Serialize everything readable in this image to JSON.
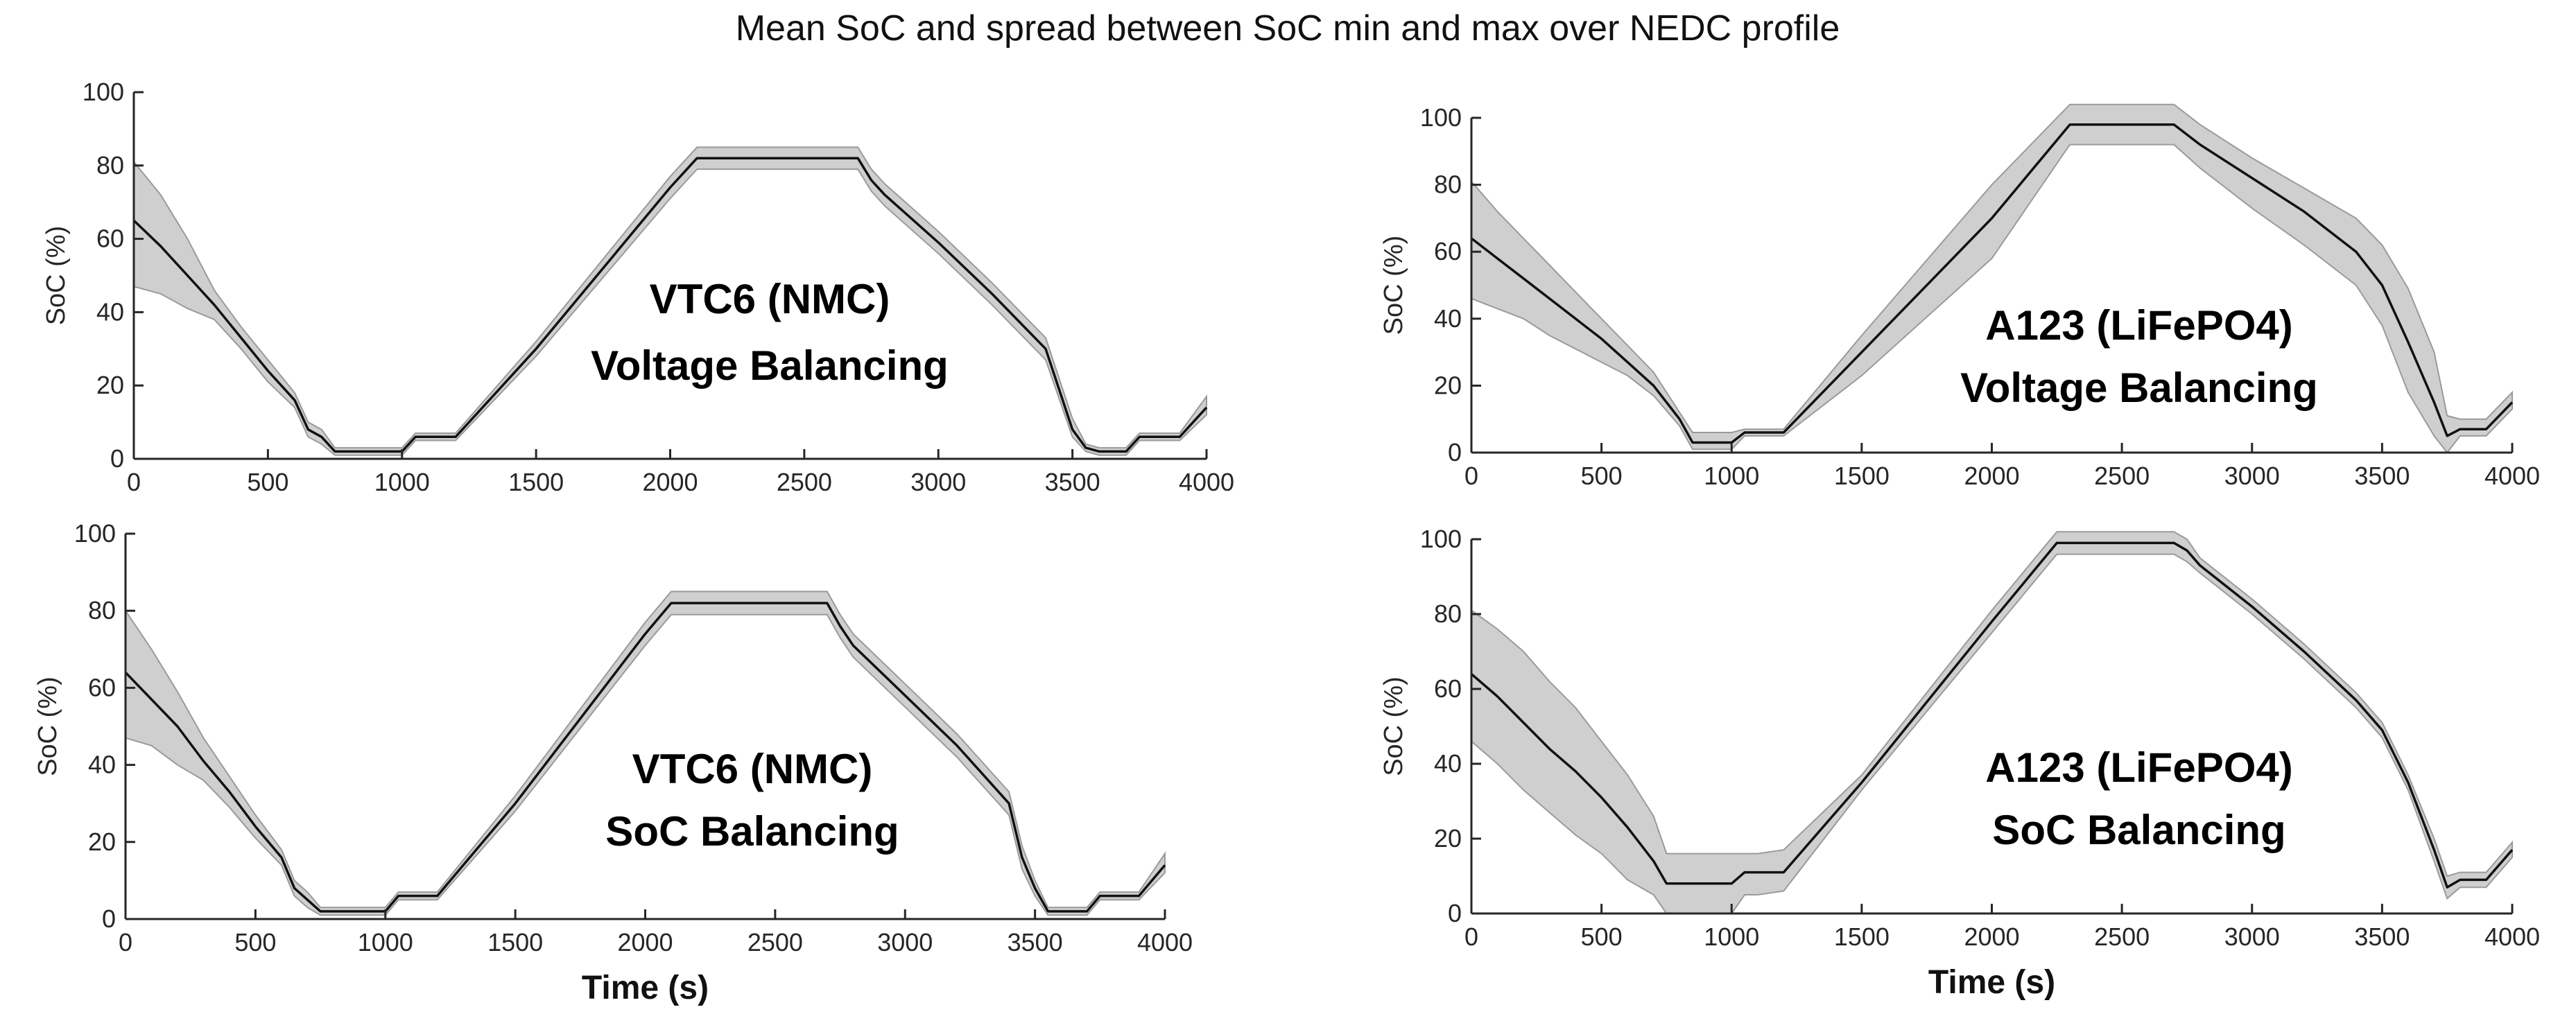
{
  "figure": {
    "title": "Mean SoC and spread between SoC min and max over NEDC profile"
  },
  "chart_data": [
    {
      "type": "area",
      "panel": "top-left",
      "annotation": [
        "VTC6 (NMC)",
        "Voltage Balancing"
      ],
      "xlabel": "",
      "ylabel": "SoC (%)",
      "xlim": [
        0,
        4000
      ],
      "ylim": [
        0,
        100
      ],
      "xticks": [
        0,
        500,
        1000,
        1500,
        2000,
        2500,
        3000,
        3500,
        4000
      ],
      "yticks": [
        0,
        20,
        40,
        60,
        80,
        100
      ],
      "series": [
        {
          "name": "mean",
          "x": [
            0,
            100,
            200,
            300,
            400,
            500,
            600,
            650,
            700,
            750,
            800,
            900,
            1000,
            1050,
            1100,
            1200,
            1500,
            2000,
            2100,
            2700,
            2750,
            2800,
            3000,
            3200,
            3400,
            3500,
            3550,
            3600,
            3700,
            3750,
            3800,
            3900,
            4000
          ],
          "values": [
            65,
            58,
            50,
            42,
            33,
            24,
            16,
            8,
            6,
            2,
            2,
            2,
            2,
            6,
            6,
            6,
            30,
            74,
            82,
            82,
            76,
            72,
            59,
            45,
            30,
            8,
            3,
            2,
            2,
            6,
            6,
            6,
            14
          ]
        },
        {
          "name": "max",
          "x": [
            0,
            100,
            200,
            300,
            400,
            500,
            600,
            650,
            700,
            750,
            800,
            900,
            1000,
            1050,
            1100,
            1200,
            1500,
            2000,
            2100,
            2700,
            2750,
            2800,
            3000,
            3200,
            3400,
            3500,
            3550,
            3600,
            3700,
            3750,
            3800,
            3900,
            4000
          ],
          "values": [
            81,
            72,
            60,
            46,
            36,
            27,
            18,
            10,
            8,
            3,
            3,
            3,
            3,
            7,
            7,
            7,
            32,
            77,
            85,
            85,
            79,
            75,
            62,
            48,
            33,
            11,
            4,
            3,
            3,
            7,
            7,
            7,
            17
          ]
        },
        {
          "name": "min",
          "x": [
            0,
            100,
            200,
            300,
            400,
            500,
            600,
            650,
            700,
            750,
            800,
            900,
            1000,
            1050,
            1100,
            1200,
            1500,
            2000,
            2100,
            2700,
            2750,
            2800,
            3000,
            3200,
            3400,
            3500,
            3550,
            3600,
            3700,
            3750,
            3800,
            3900,
            4000
          ],
          "values": [
            47,
            45,
            41,
            38,
            30,
            21,
            14,
            6,
            4,
            1,
            1,
            1,
            1,
            5,
            5,
            5,
            28,
            71,
            79,
            79,
            73,
            69,
            56,
            42,
            27,
            6,
            2,
            1,
            1,
            5,
            5,
            5,
            12
          ]
        }
      ]
    },
    {
      "type": "area",
      "panel": "top-right",
      "annotation": [
        "A123 (LiFePO4)",
        "Voltage Balancing"
      ],
      "xlabel": "",
      "ylabel": "SoC (%)",
      "xlim": [
        0,
        4000
      ],
      "ylim": [
        0,
        100
      ],
      "xticks": [
        0,
        500,
        1000,
        1500,
        2000,
        2500,
        3000,
        3500,
        4000
      ],
      "yticks": [
        0,
        20,
        40,
        60,
        80,
        100
      ],
      "series": [
        {
          "name": "mean",
          "x": [
            0,
            100,
            200,
            300,
            400,
            500,
            600,
            700,
            800,
            850,
            900,
            1000,
            1050,
            1100,
            1200,
            1500,
            2000,
            2300,
            2700,
            2800,
            3000,
            3200,
            3400,
            3500,
            3600,
            3700,
            3750,
            3800,
            3900,
            4000
          ],
          "values": [
            64,
            58,
            52,
            46,
            40,
            34,
            27,
            20,
            10,
            3,
            3,
            3,
            6,
            6,
            6,
            30,
            70,
            98,
            98,
            92,
            82,
            72,
            60,
            50,
            33,
            15,
            5,
            7,
            7,
            15
          ]
        },
        {
          "name": "max",
          "x": [
            0,
            100,
            200,
            300,
            400,
            500,
            600,
            700,
            800,
            850,
            900,
            1000,
            1050,
            1100,
            1200,
            1500,
            2000,
            2300,
            2700,
            2800,
            3000,
            3200,
            3400,
            3500,
            3600,
            3700,
            3750,
            3800,
            3900,
            4000
          ],
          "values": [
            81,
            72,
            64,
            56,
            48,
            40,
            32,
            24,
            12,
            6,
            6,
            6,
            7,
            7,
            7,
            35,
            80,
            104,
            104,
            98,
            88,
            79,
            70,
            62,
            49,
            30,
            11,
            10,
            10,
            18
          ]
        },
        {
          "name": "min",
          "x": [
            0,
            100,
            200,
            300,
            400,
            500,
            600,
            700,
            800,
            850,
            900,
            1000,
            1050,
            1100,
            1200,
            1500,
            2000,
            2300,
            2700,
            2800,
            3000,
            3200,
            3400,
            3500,
            3600,
            3700,
            3750,
            3800,
            3900,
            4000
          ],
          "values": [
            46,
            43,
            40,
            35,
            31,
            27,
            23,
            17,
            8,
            1,
            1,
            1,
            5,
            5,
            5,
            23,
            58,
            92,
            92,
            85,
            73,
            62,
            50,
            38,
            18,
            5,
            0,
            5,
            5,
            13
          ]
        }
      ]
    },
    {
      "type": "area",
      "panel": "bottom-left",
      "annotation": [
        "VTC6 (NMC)",
        "SoC Balancing"
      ],
      "xlabel": "Time (s)",
      "ylabel": "SoC (%)",
      "xlim": [
        0,
        4000
      ],
      "ylim": [
        0,
        100
      ],
      "xticks": [
        0,
        500,
        1000,
        1500,
        2000,
        2500,
        3000,
        3500,
        4000
      ],
      "yticks": [
        0,
        20,
        40,
        60,
        80,
        100
      ],
      "series": [
        {
          "name": "mean",
          "x": [
            0,
            100,
            200,
            300,
            400,
            500,
            600,
            650,
            700,
            750,
            800,
            900,
            1000,
            1050,
            1100,
            1200,
            1500,
            2000,
            2100,
            2700,
            2750,
            2800,
            3000,
            3200,
            3400,
            3450,
            3500,
            3550,
            3600,
            3700,
            3750,
            3800,
            3900,
            4000
          ],
          "values": [
            64,
            57,
            50,
            41,
            33,
            24,
            16,
            8,
            5,
            2,
            2,
            2,
            2,
            6,
            6,
            6,
            30,
            74,
            82,
            82,
            76,
            71,
            58,
            45,
            30,
            16,
            8,
            2,
            2,
            2,
            6,
            6,
            6,
            14
          ]
        },
        {
          "name": "max",
          "x": [
            0,
            100,
            200,
            300,
            400,
            500,
            600,
            650,
            700,
            750,
            800,
            900,
            1000,
            1050,
            1100,
            1200,
            1500,
            2000,
            2100,
            2700,
            2750,
            2800,
            3000,
            3200,
            3400,
            3450,
            3500,
            3550,
            3600,
            3700,
            3750,
            3800,
            3900,
            4000
          ],
          "values": [
            80,
            70,
            59,
            47,
            37,
            27,
            18,
            10,
            7,
            3,
            3,
            3,
            3,
            7,
            7,
            7,
            32,
            77,
            85,
            85,
            79,
            74,
            61,
            48,
            33,
            19,
            10,
            3,
            3,
            3,
            7,
            7,
            7,
            17
          ]
        },
        {
          "name": "min",
          "x": [
            0,
            100,
            200,
            300,
            400,
            500,
            600,
            650,
            700,
            750,
            800,
            900,
            1000,
            1050,
            1100,
            1200,
            1500,
            2000,
            2100,
            2700,
            2750,
            2800,
            3000,
            3200,
            3400,
            3450,
            3500,
            3550,
            3600,
            3700,
            3750,
            3800,
            3900,
            4000
          ],
          "values": [
            47,
            45,
            40,
            36,
            29,
            21,
            14,
            6,
            3,
            1,
            1,
            1,
            1,
            5,
            5,
            5,
            28,
            71,
            79,
            79,
            73,
            68,
            55,
            42,
            27,
            13,
            6,
            1,
            1,
            1,
            5,
            5,
            5,
            12
          ]
        }
      ]
    },
    {
      "type": "area",
      "panel": "bottom-right",
      "annotation": [
        "A123 (LiFePO4)",
        "SoC Balancing"
      ],
      "xlabel": "Time (s)",
      "ylabel": "SoC (%)",
      "xlim": [
        0,
        4000
      ],
      "ylim": [
        0,
        100
      ],
      "xticks": [
        0,
        500,
        1000,
        1500,
        2000,
        2500,
        3000,
        3500,
        4000
      ],
      "yticks": [
        0,
        20,
        40,
        60,
        80,
        100
      ],
      "series": [
        {
          "name": "mean",
          "x": [
            0,
            100,
            200,
            300,
            400,
            500,
            600,
            700,
            750,
            800,
            900,
            1000,
            1050,
            1100,
            1200,
            1500,
            2000,
            2250,
            2700,
            2750,
            2800,
            3000,
            3200,
            3400,
            3500,
            3600,
            3700,
            3750,
            3800,
            3900,
            4000
          ],
          "values": [
            64,
            58,
            51,
            44,
            38,
            31,
            23,
            14,
            8,
            8,
            8,
            8,
            11,
            11,
            11,
            35,
            78,
            99,
            99,
            97,
            93,
            82,
            70,
            57,
            49,
            35,
            17,
            7,
            9,
            9,
            17
          ]
        },
        {
          "name": "max",
          "x": [
            0,
            100,
            200,
            300,
            400,
            500,
            600,
            700,
            750,
            800,
            900,
            1000,
            1050,
            1100,
            1200,
            1500,
            2000,
            2250,
            2700,
            2750,
            2800,
            3000,
            3200,
            3400,
            3500,
            3600,
            3700,
            3750,
            3800,
            3900,
            4000
          ],
          "values": [
            81,
            76,
            70,
            62,
            55,
            46,
            37,
            26,
            16,
            16,
            16,
            16,
            16,
            16,
            17,
            37,
            81,
            102,
            102,
            100,
            95,
            84,
            72,
            59,
            51,
            37,
            20,
            10,
            11,
            11,
            19
          ]
        },
        {
          "name": "min",
          "x": [
            0,
            100,
            200,
            300,
            400,
            500,
            600,
            700,
            750,
            800,
            900,
            1000,
            1050,
            1100,
            1200,
            1500,
            2000,
            2250,
            2700,
            2750,
            2800,
            3000,
            3200,
            3400,
            3500,
            3600,
            3700,
            3750,
            3800,
            3900,
            4000
          ],
          "values": [
            46,
            40,
            33,
            27,
            21,
            16,
            9,
            5,
            0,
            0,
            0,
            0,
            5,
            5,
            6,
            33,
            75,
            96,
            96,
            94,
            91,
            80,
            68,
            55,
            47,
            33,
            14,
            4,
            7,
            7,
            15
          ]
        }
      ]
    }
  ]
}
